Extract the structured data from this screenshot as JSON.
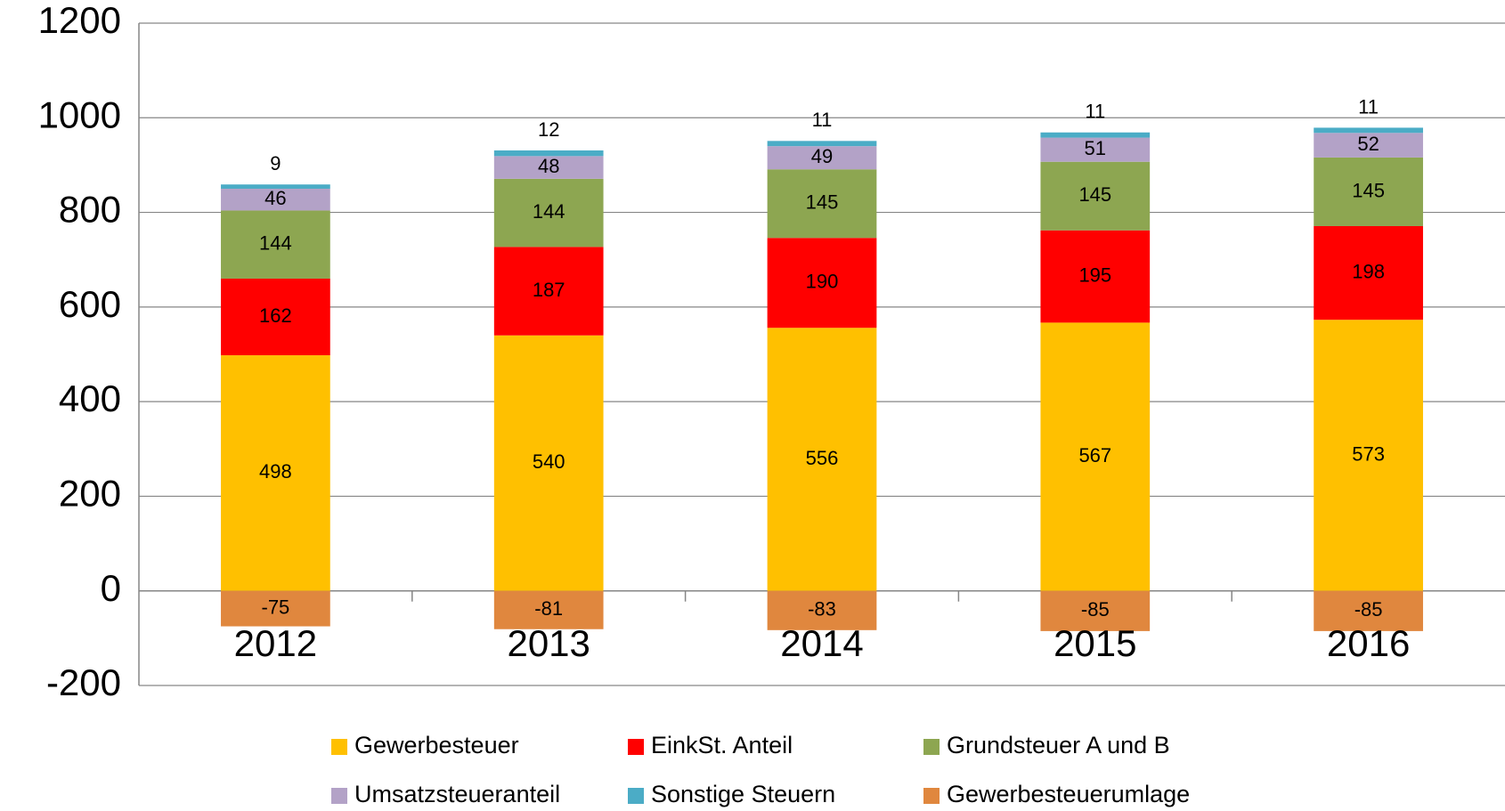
{
  "chart_data": {
    "type": "stacked_bar",
    "categories": [
      "2012",
      "2013",
      "2014",
      "2015",
      "2016"
    ],
    "series": [
      {
        "name": "Gewerbesteuer",
        "color": "#FFC000",
        "values": [
          498,
          540,
          556,
          567,
          573
        ]
      },
      {
        "name": "EinkSt. Anteil",
        "color": "#FF0000",
        "values": [
          162,
          187,
          190,
          195,
          198
        ]
      },
      {
        "name": "Grundsteuer A und B",
        "color": "#8DA651",
        "values": [
          144,
          144,
          145,
          145,
          145
        ]
      },
      {
        "name": "Umsatzsteueranteil",
        "color": "#B3A2C7",
        "values": [
          46,
          48,
          49,
          51,
          52
        ]
      },
      {
        "name": "Sonstige Steuern",
        "color": "#4BACC6",
        "values": [
          9,
          12,
          11,
          11,
          11
        ]
      },
      {
        "name": "Gewerbesteuerumlage",
        "color": "#E0873E",
        "values": [
          -75,
          -81,
          -83,
          -85,
          -85
        ]
      }
    ],
    "ylim": [
      -200,
      1200
    ],
    "yticks": [
      -200,
      0,
      200,
      400,
      600,
      800,
      1000,
      1200
    ],
    "grid": true,
    "legend": "bottom"
  }
}
